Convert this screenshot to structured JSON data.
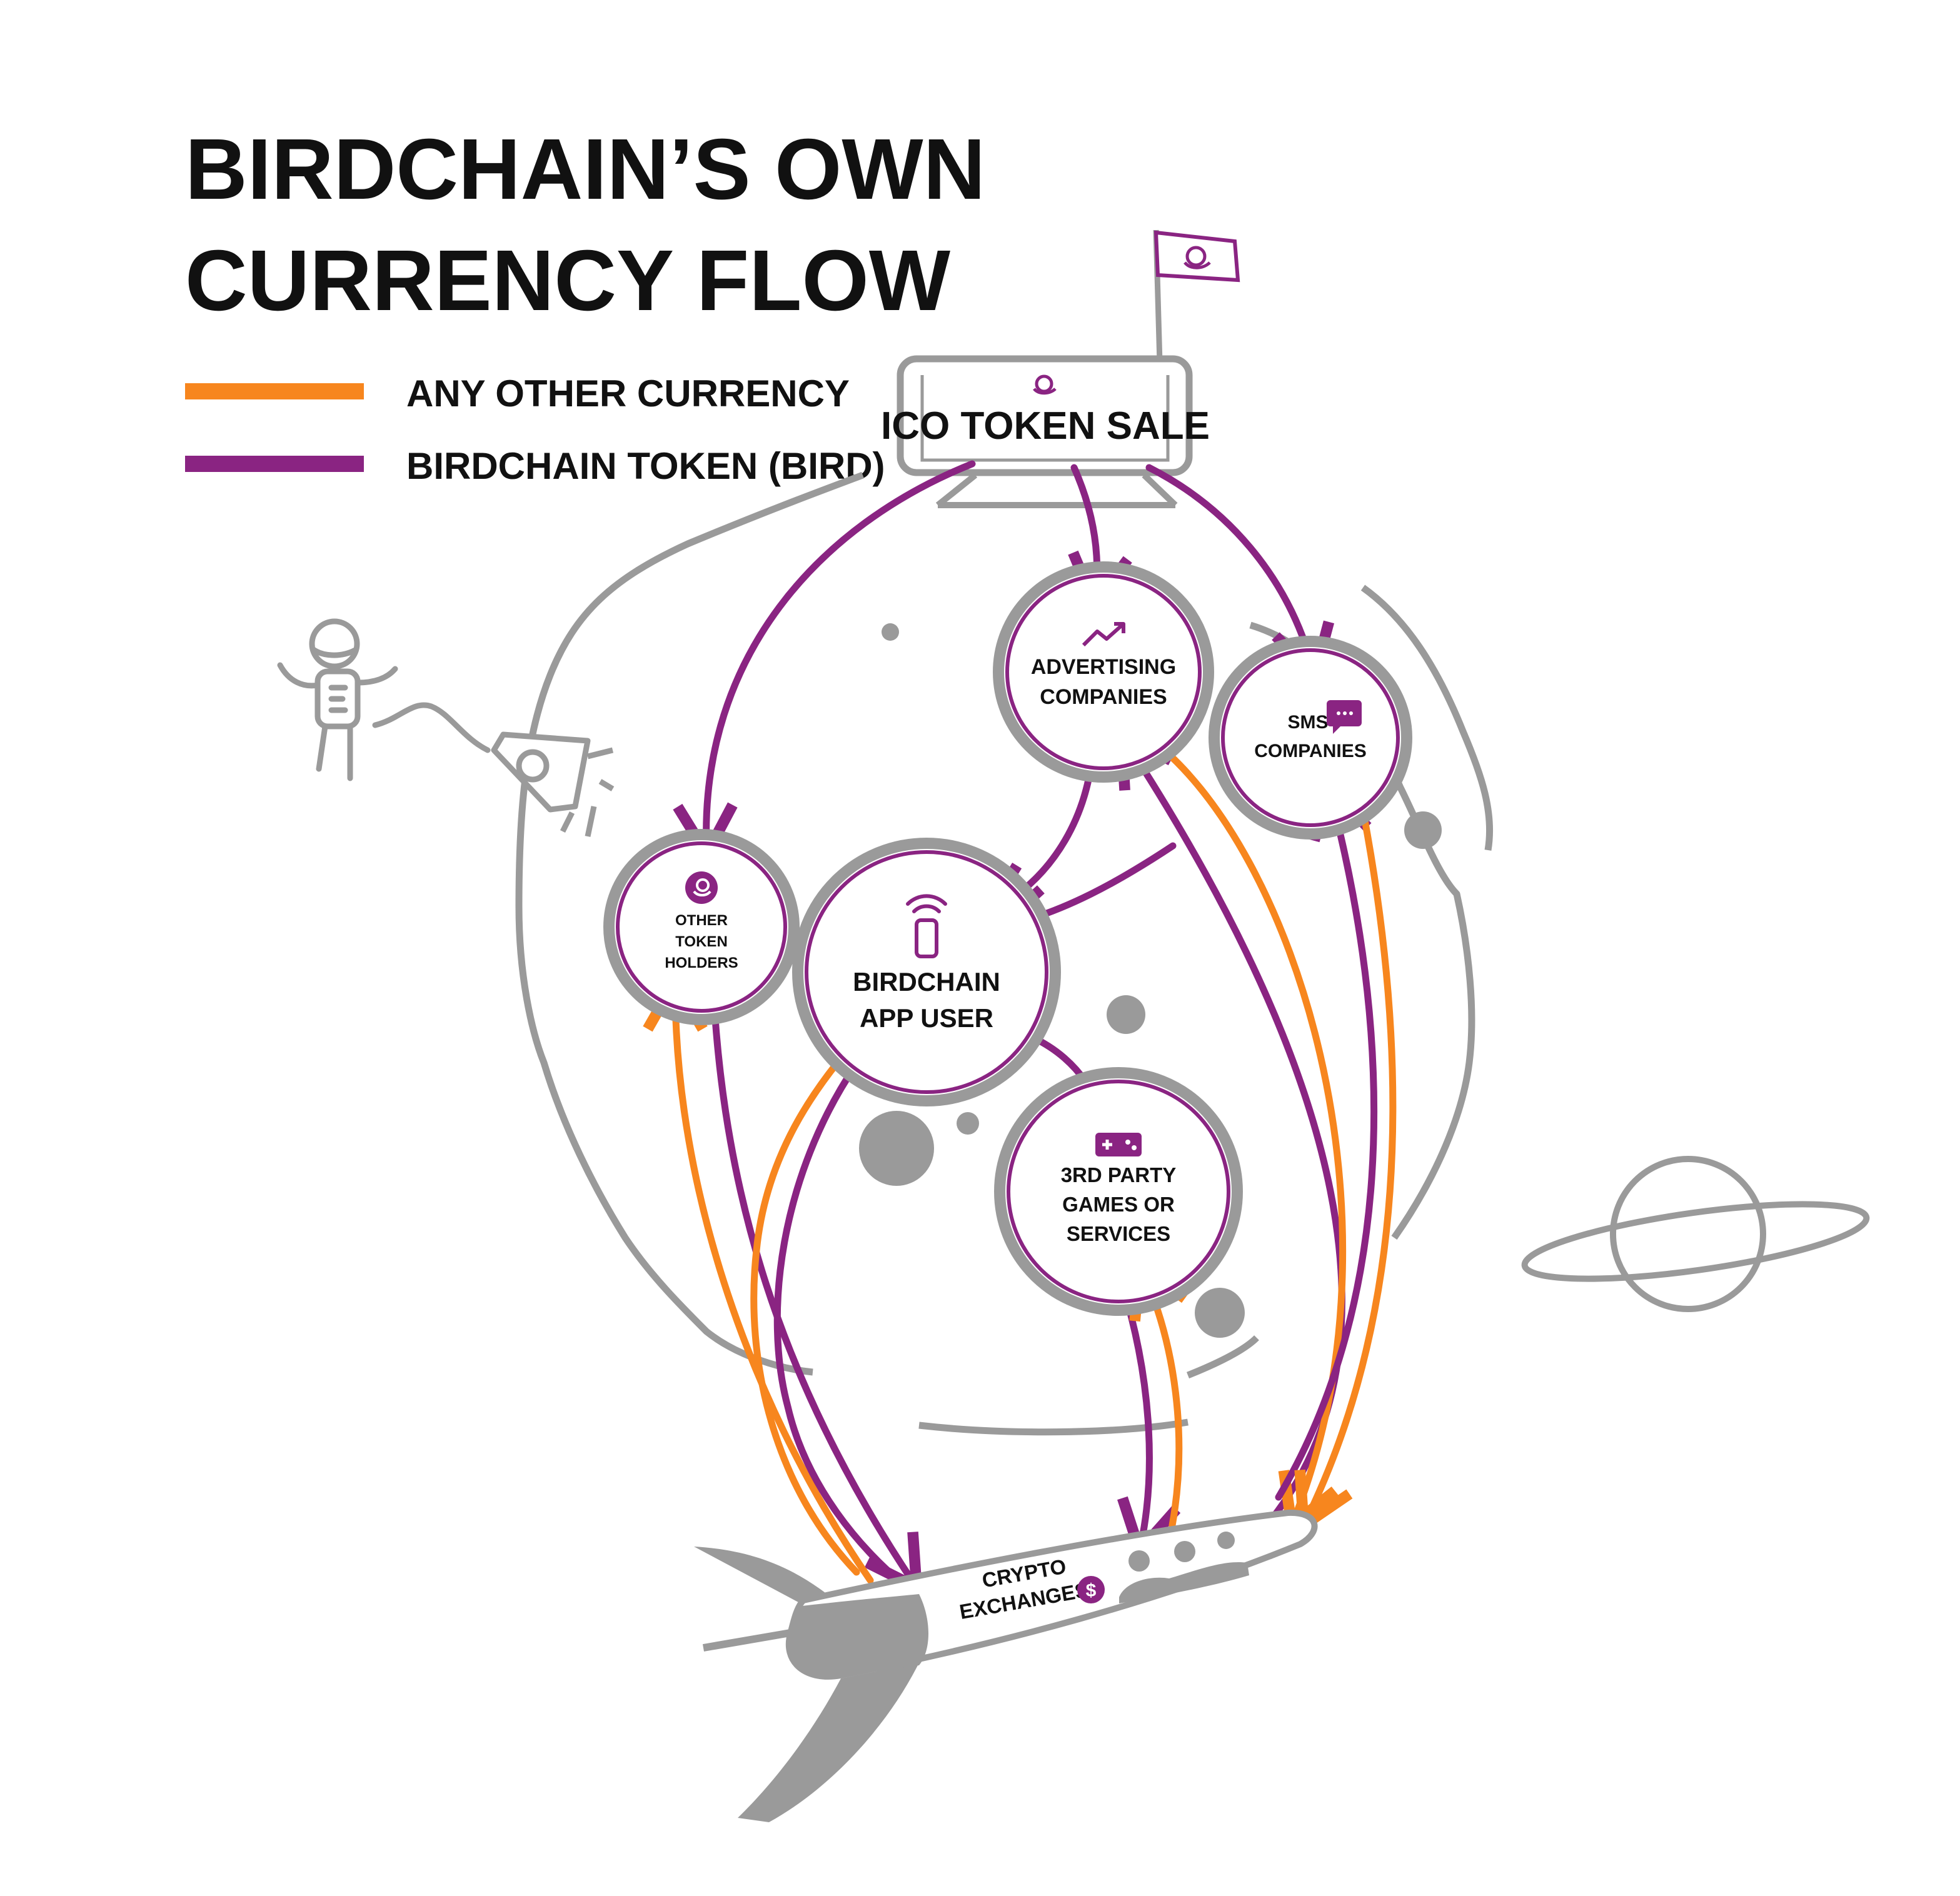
{
  "title": {
    "line1": "BIRDCHAIN’S OWN",
    "line2": "CURRENCY FLOW"
  },
  "legend": [
    {
      "label": "ANY OTHER CURRENCY",
      "color": "#F7861E"
    },
    {
      "label": "BIRDCHAIN TOKEN (BIRD)",
      "color": "#8A2482"
    }
  ],
  "colors": {
    "orange": "#F7861E",
    "purple": "#8A2482",
    "gray": "#9A9A9A",
    "ink": "#111111"
  },
  "nodes": {
    "ico": {
      "label": "ICO TOKEN SALE",
      "icon": "bird-logo-icon"
    },
    "advertising": {
      "line1": "ADVERTISING",
      "line2": "COMPANIES",
      "icon": "trending-up-icon"
    },
    "sms": {
      "line1": "SMS",
      "line2": "COMPANIES",
      "icon": "chat-bubble-icon"
    },
    "holders": {
      "line1": "OTHER",
      "line2": "TOKEN",
      "line3": "HOLDERS",
      "icon": "bird-coin-icon"
    },
    "app_user": {
      "line1": "BIRDCHAIN",
      "line2": "APP USER",
      "icon": "smartphone-signal-icon"
    },
    "games": {
      "line1": "3RD PARTY",
      "line2": "GAMES OR",
      "line3": "SERVICES",
      "icon": "gamepad-icon"
    },
    "exchanges": {
      "line1": "CRYPTO",
      "line2": "EXCHANGES",
      "icon": "dollar-coin-icon"
    }
  },
  "flows": [
    {
      "from": "ICO TOKEN SALE",
      "to": "OTHER TOKEN HOLDERS",
      "currency": "BIRDCHAIN TOKEN (BIRD)"
    },
    {
      "from": "ICO TOKEN SALE",
      "to": "ADVERTISING COMPANIES",
      "currency": "BIRDCHAIN TOKEN (BIRD)"
    },
    {
      "from": "ICO TOKEN SALE",
      "to": "SMS COMPANIES",
      "currency": "BIRDCHAIN TOKEN (BIRD)"
    },
    {
      "from": "ADVERTISING COMPANIES",
      "to": "BIRDCHAIN APP USER",
      "currency": "BIRDCHAIN TOKEN (BIRD)"
    },
    {
      "from": "SMS COMPANIES",
      "to": "BIRDCHAIN APP USER",
      "currency": "BIRDCHAIN TOKEN (BIRD)"
    },
    {
      "from": "BIRDCHAIN APP USER",
      "to": "3RD PARTY GAMES OR SERVICES",
      "currency": "BIRDCHAIN TOKEN (BIRD)"
    },
    {
      "from": "OTHER TOKEN HOLDERS",
      "to": "CRYPTO EXCHANGES",
      "currency": "BIRDCHAIN TOKEN (BIRD)"
    },
    {
      "from": "CRYPTO EXCHANGES",
      "to": "OTHER TOKEN HOLDERS",
      "currency": "ANY OTHER CURRENCY"
    },
    {
      "from": "BIRDCHAIN APP USER",
      "to": "CRYPTO EXCHANGES",
      "currency": "BIRDCHAIN TOKEN (BIRD)"
    },
    {
      "from": "CRYPTO EXCHANGES",
      "to": "BIRDCHAIN APP USER",
      "currency": "ANY OTHER CURRENCY"
    },
    {
      "from": "3RD PARTY GAMES OR SERVICES",
      "to": "CRYPTO EXCHANGES",
      "currency": "BIRDCHAIN TOKEN (BIRD)"
    },
    {
      "from": "CRYPTO EXCHANGES",
      "to": "3RD PARTY GAMES OR SERVICES",
      "currency": "ANY OTHER CURRENCY"
    },
    {
      "from": "CRYPTO EXCHANGES",
      "to": "ADVERTISING COMPANIES",
      "currency": "BIRDCHAIN TOKEN (BIRD)"
    },
    {
      "from": "ADVERTISING COMPANIES",
      "to": "CRYPTO EXCHANGES",
      "currency": "ANY OTHER CURRENCY"
    },
    {
      "from": "CRYPTO EXCHANGES",
      "to": "SMS COMPANIES",
      "currency": "BIRDCHAIN TOKEN (BIRD)"
    },
    {
      "from": "SMS COMPANIES",
      "to": "CRYPTO EXCHANGES",
      "currency": "ANY OTHER CURRENCY"
    }
  ]
}
